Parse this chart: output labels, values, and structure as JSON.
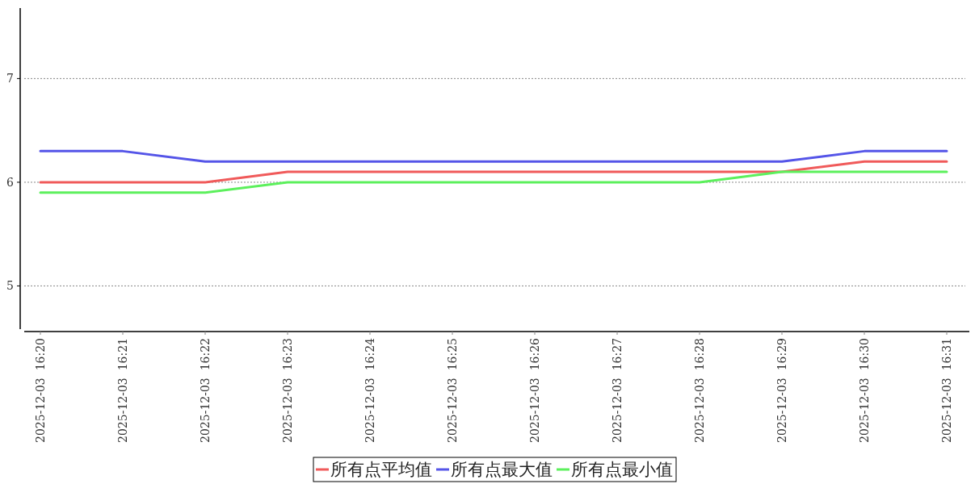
{
  "chart_data": {
    "type": "line",
    "categories": [
      "2025-12-03  16:20",
      "2025-12-03  16:21",
      "2025-12-03  16:22",
      "2025-12-03  16:23",
      "2025-12-03  16:24",
      "2025-12-03  16:25",
      "2025-12-03  16:26",
      "2025-12-03  16:27",
      "2025-12-03  16:28",
      "2025-12-03  16:29",
      "2025-12-03  16:30",
      "2025-12-03  16:31"
    ],
    "series": [
      {
        "name": "所有点平均值",
        "color": "#f05a5a",
        "values": [
          6.0,
          6.0,
          6.0,
          6.1,
          6.1,
          6.1,
          6.1,
          6.1,
          6.1,
          6.1,
          6.2,
          6.2
        ]
      },
      {
        "name": "所有点最大值",
        "color": "#5555e8",
        "values": [
          6.3,
          6.3,
          6.2,
          6.2,
          6.2,
          6.2,
          6.2,
          6.2,
          6.2,
          6.2,
          6.3,
          6.3
        ]
      },
      {
        "name": "所有点最小值",
        "color": "#5cf05c",
        "values": [
          5.9,
          5.9,
          5.9,
          6.0,
          6.0,
          6.0,
          6.0,
          6.0,
          6.0,
          6.1,
          6.1,
          6.1
        ]
      }
    ],
    "ylim": [
      4.56,
      7.68
    ],
    "yticks": [
      5,
      6,
      7
    ],
    "grid": "y",
    "legend": "bottom",
    "line_style": "solid"
  }
}
